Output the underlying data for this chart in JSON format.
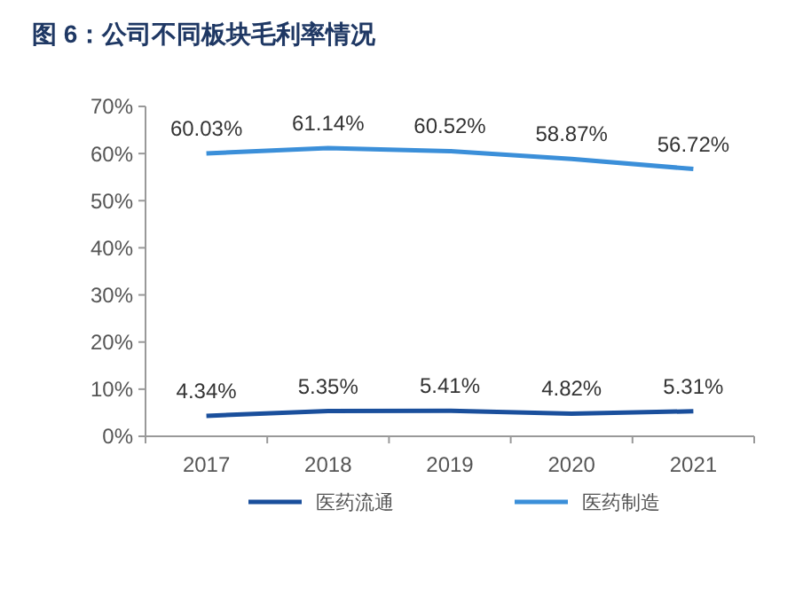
{
  "chart_data": {
    "type": "line",
    "title": "图 6：公司不同板块毛利率情况",
    "categories": [
      "2017",
      "2018",
      "2019",
      "2020",
      "2021"
    ],
    "series": [
      {
        "name": "医药流通",
        "color": "#1a4f9c",
        "values": [
          4.34,
          5.35,
          5.41,
          4.82,
          5.31
        ],
        "value_labels": [
          "4.34%",
          "5.35%",
          "5.41%",
          "4.82%",
          "5.31%"
        ]
      },
      {
        "name": "医药制造",
        "color": "#3b8fd9",
        "values": [
          60.03,
          61.14,
          60.52,
          58.87,
          56.72
        ],
        "value_labels": [
          "60.03%",
          "61.14%",
          "60.52%",
          "58.87%",
          "56.72%"
        ]
      }
    ],
    "ylim": [
      0,
      70
    ],
    "yticks": [
      {
        "value": 0,
        "label": "0%"
      },
      {
        "value": 10,
        "label": "10%"
      },
      {
        "value": 20,
        "label": "20%"
      },
      {
        "value": 30,
        "label": "30%"
      },
      {
        "value": 40,
        "label": "40%"
      },
      {
        "value": 50,
        "label": "50%"
      },
      {
        "value": 60,
        "label": "60%"
      },
      {
        "value": 70,
        "label": "70%"
      }
    ],
    "grid": false,
    "legend": "bottom",
    "marker": "none",
    "line_style": "solid"
  }
}
